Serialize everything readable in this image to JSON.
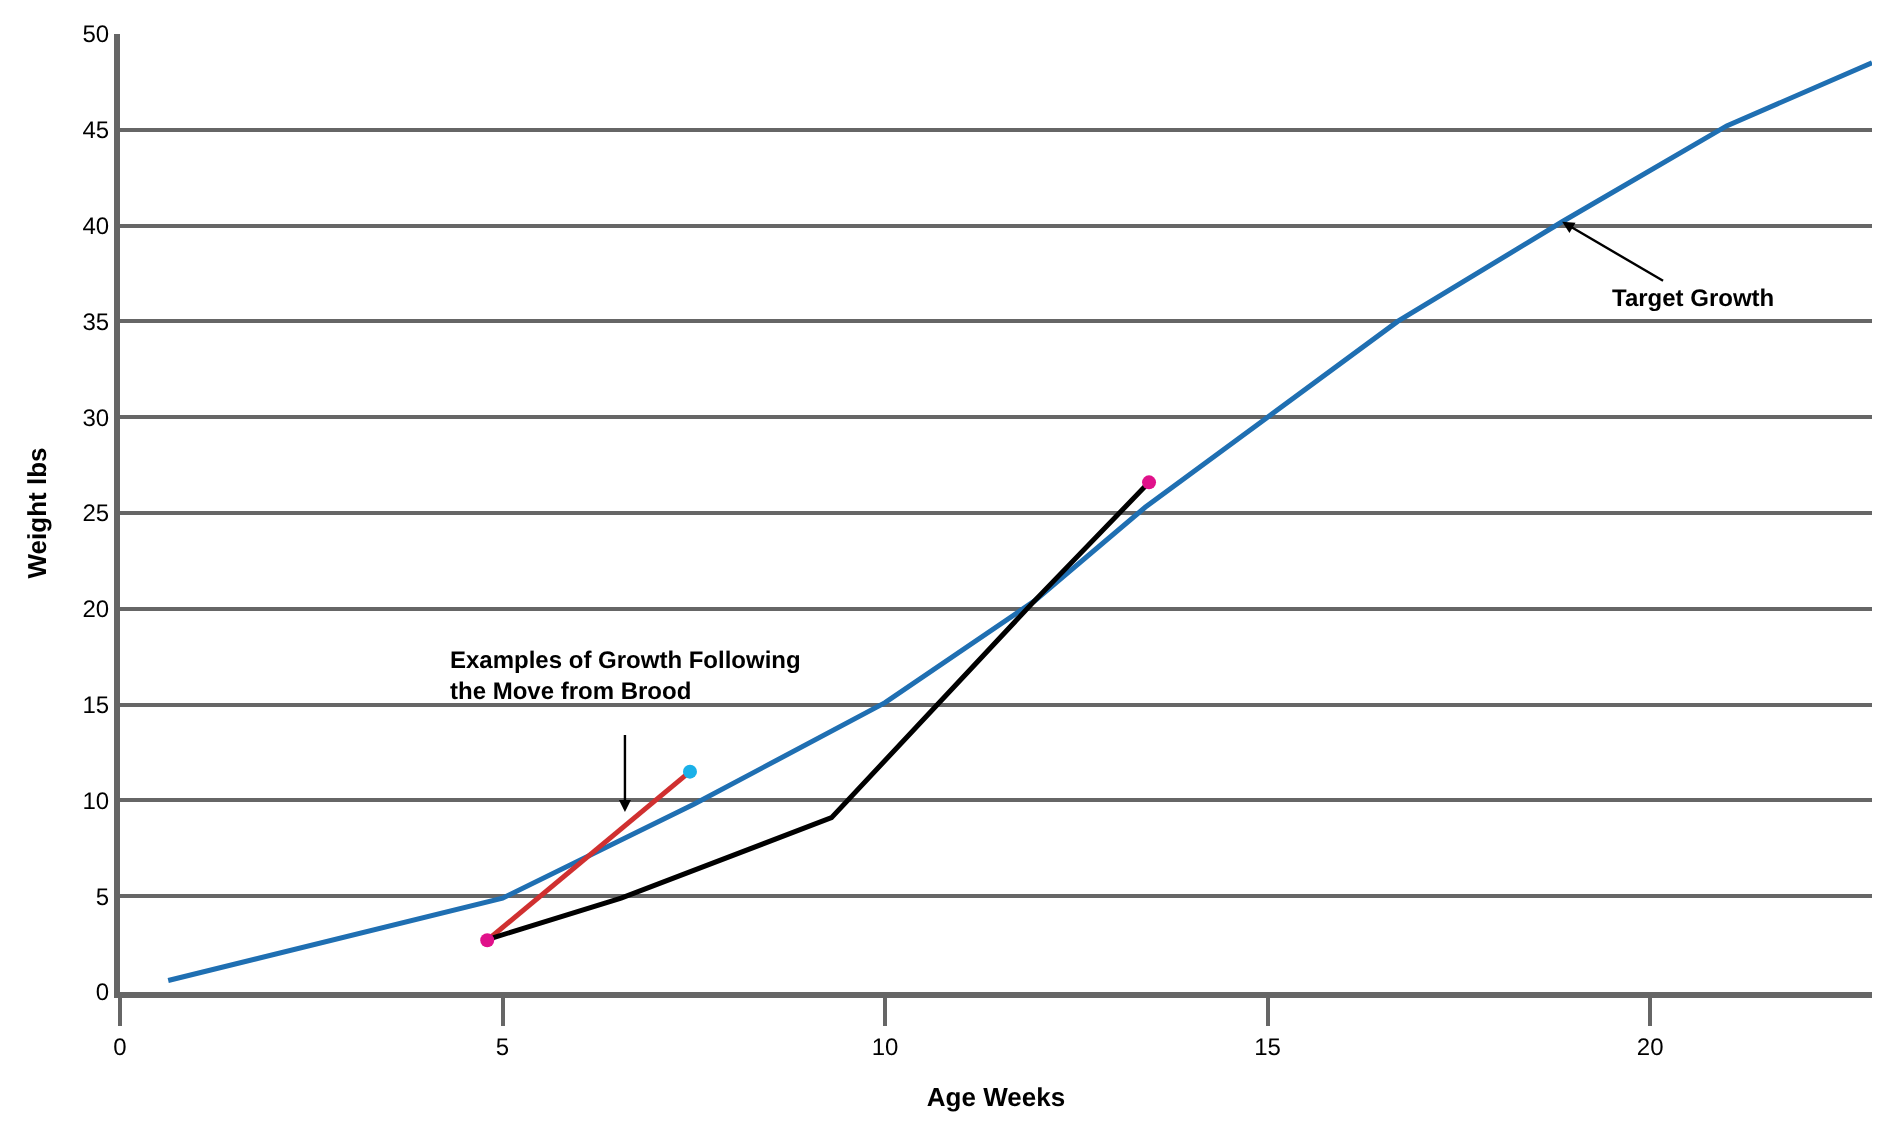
{
  "chart_data": {
    "type": "line",
    "xlabel": "Age Weeks",
    "ylabel": "Weight lbs",
    "xlim": [
      0,
      22.9
    ],
    "xticks": [
      0,
      5,
      10,
      15,
      20
    ],
    "ylim": [
      0,
      50
    ],
    "yticks": [
      0,
      5,
      10,
      15,
      20,
      25,
      30,
      35,
      40,
      45,
      50
    ],
    "grid": "y",
    "line_style": "solid",
    "series": [
      {
        "color": "#1f6fb2",
        "x": [
          0.63,
          5,
          7.5,
          10,
          11.95,
          13.4,
          15.0,
          16.7,
          18.85,
          21.0,
          22.9
        ],
        "values": [
          0.6,
          4.9,
          9.8,
          15.1,
          20.4,
          25.3,
          30.0,
          35.0,
          40.2,
          45.2,
          48.5
        ]
      },
      {
        "color": "#d03030",
        "x": [
          4.8,
          7.45
        ],
        "values": [
          2.7,
          11.5
        ]
      },
      {
        "color": "#000000",
        "x": [
          4.85,
          6.55,
          9.3,
          11.95,
          13.45
        ],
        "values": [
          2.8,
          4.9,
          9.1,
          20.4,
          26.6
        ]
      },
      {
        "type": "scatter",
        "marker": "circle",
        "color": "#e0118a",
        "x": [
          4.8,
          13.45
        ],
        "values": [
          2.7,
          26.6
        ]
      },
      {
        "type": "scatter",
        "marker": "circle",
        "color": "#1ab0e8",
        "x": [
          7.45
        ],
        "values": [
          11.5
        ]
      }
    ],
    "annotations": [
      {
        "text": "Examples of Growth Following\nthe Move from Brood",
        "x": 6.6,
        "y": 9.4
      },
      {
        "text": "Target Growth",
        "x": 18.85,
        "y": 40.2
      }
    ]
  }
}
